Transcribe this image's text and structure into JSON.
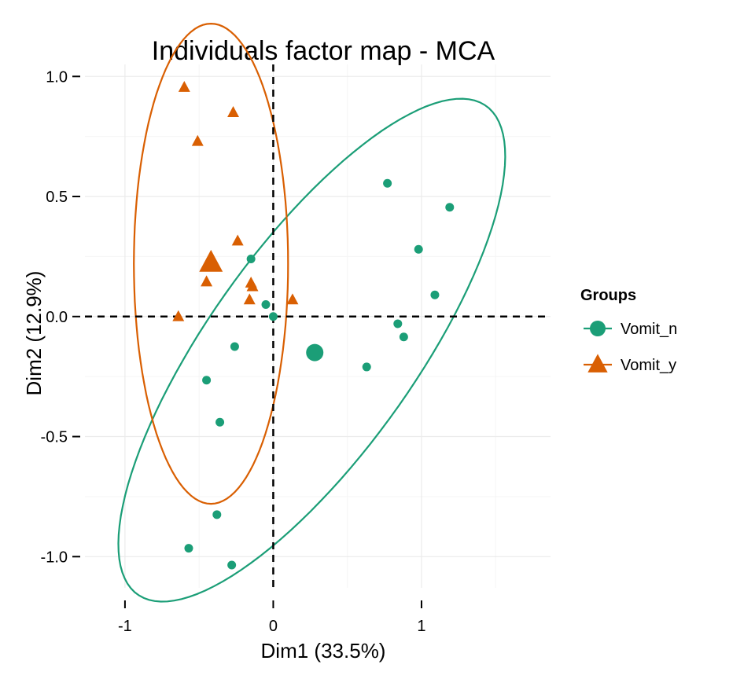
{
  "chart_data": {
    "type": "scatter",
    "title": "Individuals factor map - MCA",
    "xlabel": "Dim1 (33.5%)",
    "ylabel": "Dim2 (12.9%)",
    "xlim": [
      -1.27,
      1.87
    ],
    "ylim": [
      -1.13,
      1.05
    ],
    "x_ticks": [
      -1,
      0,
      1
    ],
    "y_ticks": [
      -1.0,
      -0.5,
      0.0,
      0.5,
      1.0
    ],
    "x_tick_labels": [
      "-1",
      "0",
      "1"
    ],
    "y_tick_labels": [
      "-1.0",
      "-0.5",
      "0.0",
      "0.5",
      "1.0"
    ],
    "grid": true,
    "reference_lines": {
      "x": 0,
      "y": 0
    },
    "legend": {
      "title": "Groups",
      "position": "right"
    },
    "series": [
      {
        "name": "Vomit_n",
        "color": "#1b9e77",
        "marker": "circle",
        "points": [
          {
            "x": 0.77,
            "y": 0.555
          },
          {
            "x": 1.19,
            "y": 0.455
          },
          {
            "x": 0.98,
            "y": 0.28
          },
          {
            "x": 1.09,
            "y": 0.09
          },
          {
            "x": 0.84,
            "y": -0.03
          },
          {
            "x": 0.88,
            "y": -0.085
          },
          {
            "x": 0.63,
            "y": -0.21
          },
          {
            "x": -0.15,
            "y": 0.24
          },
          {
            "x": -0.05,
            "y": 0.05
          },
          {
            "x": 0.0,
            "y": 0.0
          },
          {
            "x": -0.26,
            "y": -0.125
          },
          {
            "x": -0.45,
            "y": -0.265
          },
          {
            "x": -0.36,
            "y": -0.44
          },
          {
            "x": -0.38,
            "y": -0.825
          },
          {
            "x": -0.57,
            "y": -0.965
          },
          {
            "x": -0.28,
            "y": -1.035
          }
        ],
        "centroid": {
          "x": 0.28,
          "y": -0.15
        },
        "ellipse": {
          "center": [
            0.26,
            -0.14
          ],
          "semi_axes": [
            1.58,
            0.55
          ],
          "angle_deg": 37
        }
      },
      {
        "name": "Vomit_y",
        "color": "#d95f02",
        "marker": "triangle",
        "points": [
          {
            "x": -0.6,
            "y": 0.955
          },
          {
            "x": -0.27,
            "y": 0.85
          },
          {
            "x": -0.51,
            "y": 0.73
          },
          {
            "x": -0.24,
            "y": 0.315
          },
          {
            "x": -0.45,
            "y": 0.145
          },
          {
            "x": -0.15,
            "y": 0.14
          },
          {
            "x": -0.14,
            "y": 0.125
          },
          {
            "x": -0.16,
            "y": 0.07
          },
          {
            "x": 0.13,
            "y": 0.07
          },
          {
            "x": -0.64,
            "y": 0.0
          }
        ],
        "centroid": {
          "x": -0.42,
          "y": 0.225
        },
        "ellipse": {
          "center": [
            -0.42,
            0.22
          ],
          "semi_axes": [
            0.52,
            1.0
          ],
          "angle_deg": 0
        }
      }
    ]
  }
}
